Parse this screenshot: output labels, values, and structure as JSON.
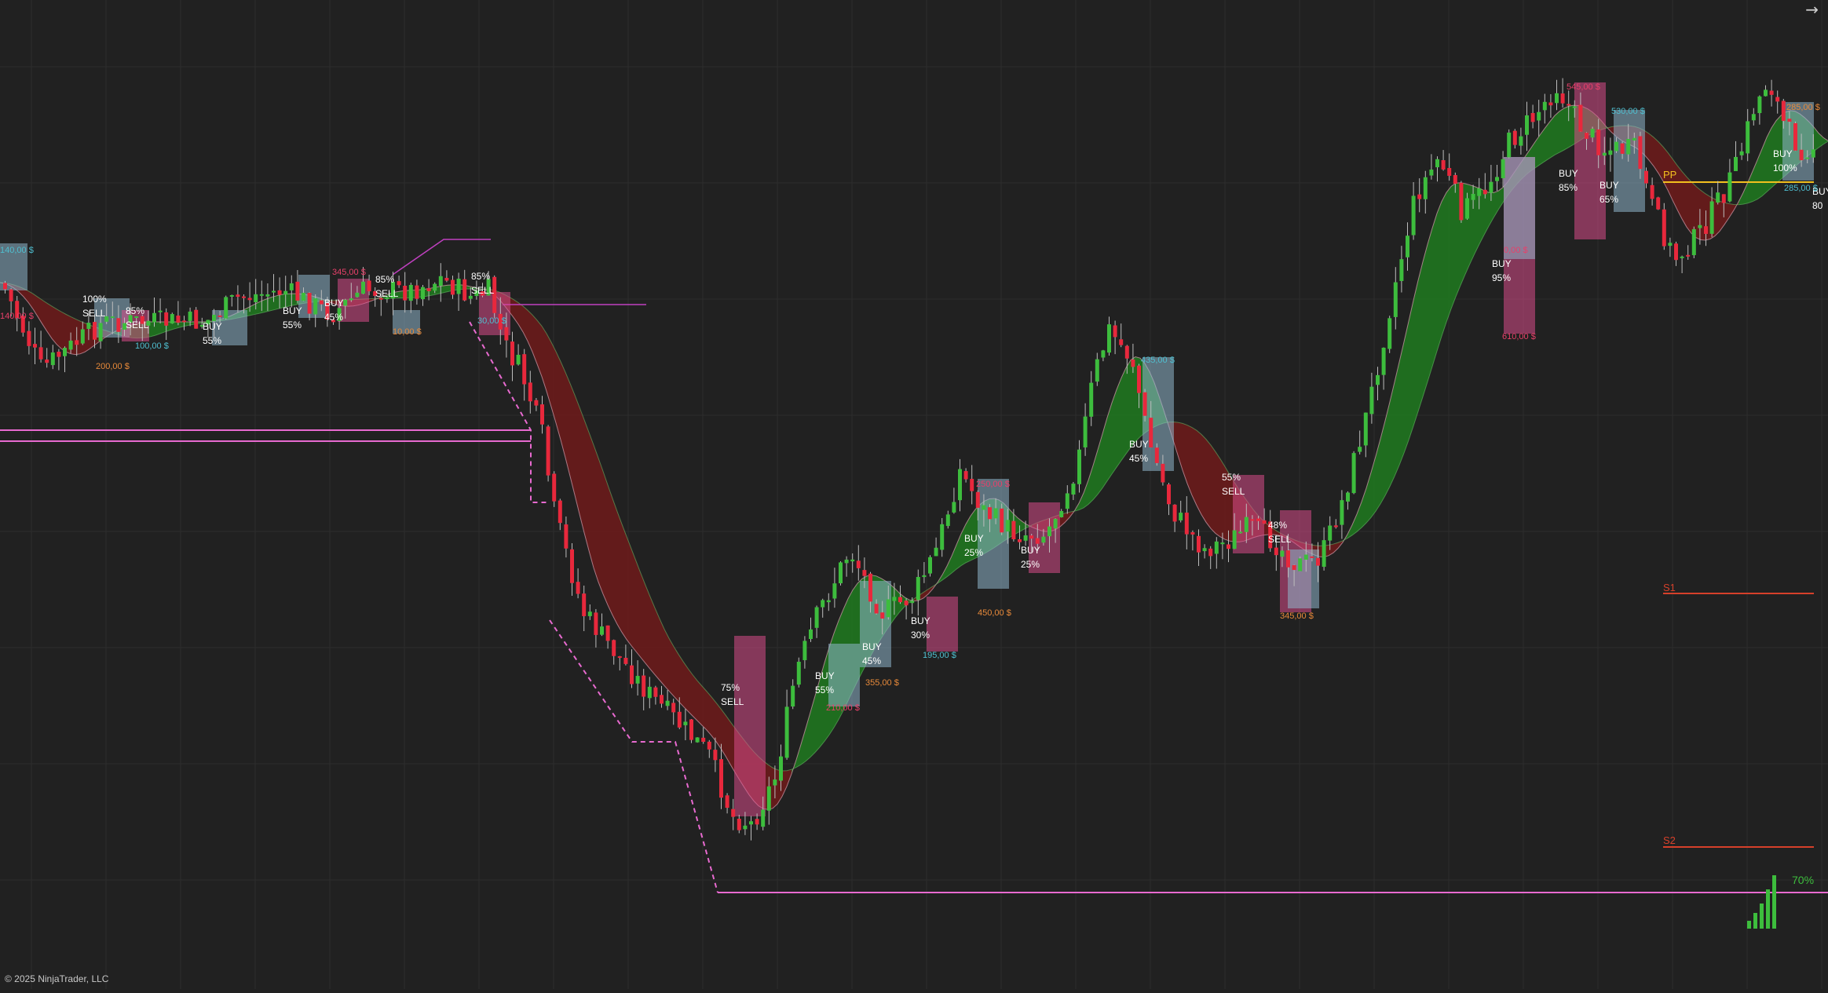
{
  "app": {
    "copyright": "© 2025 NinjaTrader, LLC",
    "nav_icon": "arrow-right-icon"
  },
  "colors": {
    "background": "#212121",
    "grid": "#2d2d2d",
    "bull_candle": "#3dbd3d",
    "bear_candle": "#e8283c",
    "bull_cloud": "#1f7a1f",
    "bear_cloud": "#6e1a1a",
    "pivot": "#f2c01e",
    "support": "#d6402a",
    "trend_line": "#e86ad0",
    "target_box": "#8fb6cc",
    "stop_box": "#d84c8a"
  },
  "levels": [
    {
      "label": "PP",
      "color": "#f2c01e"
    },
    {
      "label": "S1",
      "color": "#d6402a"
    },
    {
      "label": "S2",
      "color": "#d6402a"
    }
  ],
  "strength_meter": {
    "label": "70%",
    "value": 0.7
  },
  "signals": [
    {
      "type": "SELL",
      "confidence": "100%"
    },
    {
      "type": "SELL",
      "confidence": "85%"
    },
    {
      "type": "BUY",
      "confidence": "55%"
    },
    {
      "type": "BUY",
      "confidence": "55%"
    },
    {
      "type": "BUY",
      "confidence": "45%"
    },
    {
      "type": "SELL",
      "confidence": "85%"
    },
    {
      "type": "SELL",
      "confidence": "85%"
    },
    {
      "type": "SELL",
      "confidence": "75%"
    },
    {
      "type": "BUY",
      "confidence": "55%"
    },
    {
      "type": "BUY",
      "confidence": "45%"
    },
    {
      "type": "BUY",
      "confidence": "30%"
    },
    {
      "type": "BUY",
      "confidence": "25%"
    },
    {
      "type": "BUY",
      "confidence": "25%"
    },
    {
      "type": "BUY",
      "confidence": "45%"
    },
    {
      "type": "SELL",
      "confidence": "55%"
    },
    {
      "type": "SELL",
      "confidence": "48%"
    },
    {
      "type": "BUY",
      "confidence": "95%"
    },
    {
      "type": "BUY",
      "confidence": "85%"
    },
    {
      "type": "BUY",
      "confidence": "65%"
    },
    {
      "type": "BUY",
      "confidence": "100%"
    },
    {
      "type": "BUY",
      "confidence": "80"
    }
  ],
  "trade_labels": [
    "140,00 $",
    "140,00 $",
    "200,00 $",
    "100,00 $",
    "345,00 $",
    "10,00 $",
    "30,00 $",
    "210,00 $",
    "355,00 $",
    "195,00 $",
    "250,00 $",
    "450,00 $",
    "435,00 $",
    "545,00 $",
    "345,00 $",
    "530,00 $",
    "610,00 $",
    "285,00 $",
    "285,00 $",
    "0,00 $"
  ]
}
